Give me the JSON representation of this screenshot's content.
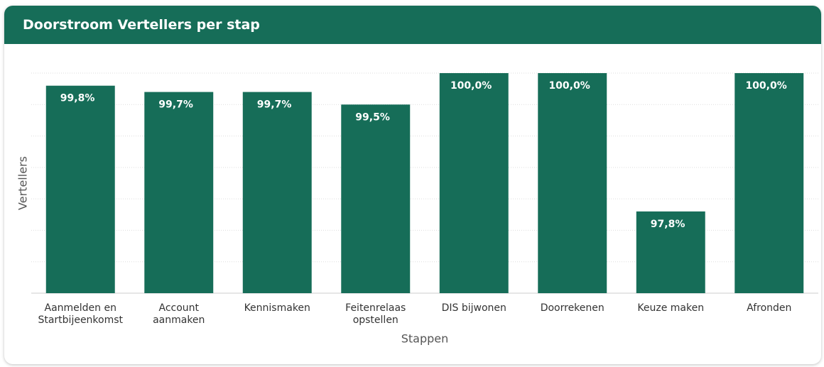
{
  "chart_data": {
    "type": "bar",
    "title": "Doorstroom Vertellers per stap",
    "categories": [
      "Aanmelden en\nStartbijeenkomst",
      "Account\naanmaken",
      "Kennismaken",
      "Feitenrelaas\nopstellen",
      "DIS bijwonen",
      "Doorrekenen",
      "Keuze maken",
      "Afronden"
    ],
    "values": [
      99.8,
      99.7,
      99.7,
      99.5,
      100,
      100,
      97.8,
      100
    ],
    "value_labels": [
      "99,8%",
      "99,7%",
      "99,7%",
      "99,5%",
      "100,0%",
      "100,0%",
      "97,8%",
      "100,0%"
    ],
    "color": "#166d58",
    "ylim": [
      96.5,
      100
    ],
    "yticks": [
      96.5,
      97,
      97.5,
      98,
      98.5,
      99,
      99.5,
      100
    ],
    "grid": true,
    "xlabel": "Stappen",
    "ylabel": "Vertellers"
  }
}
